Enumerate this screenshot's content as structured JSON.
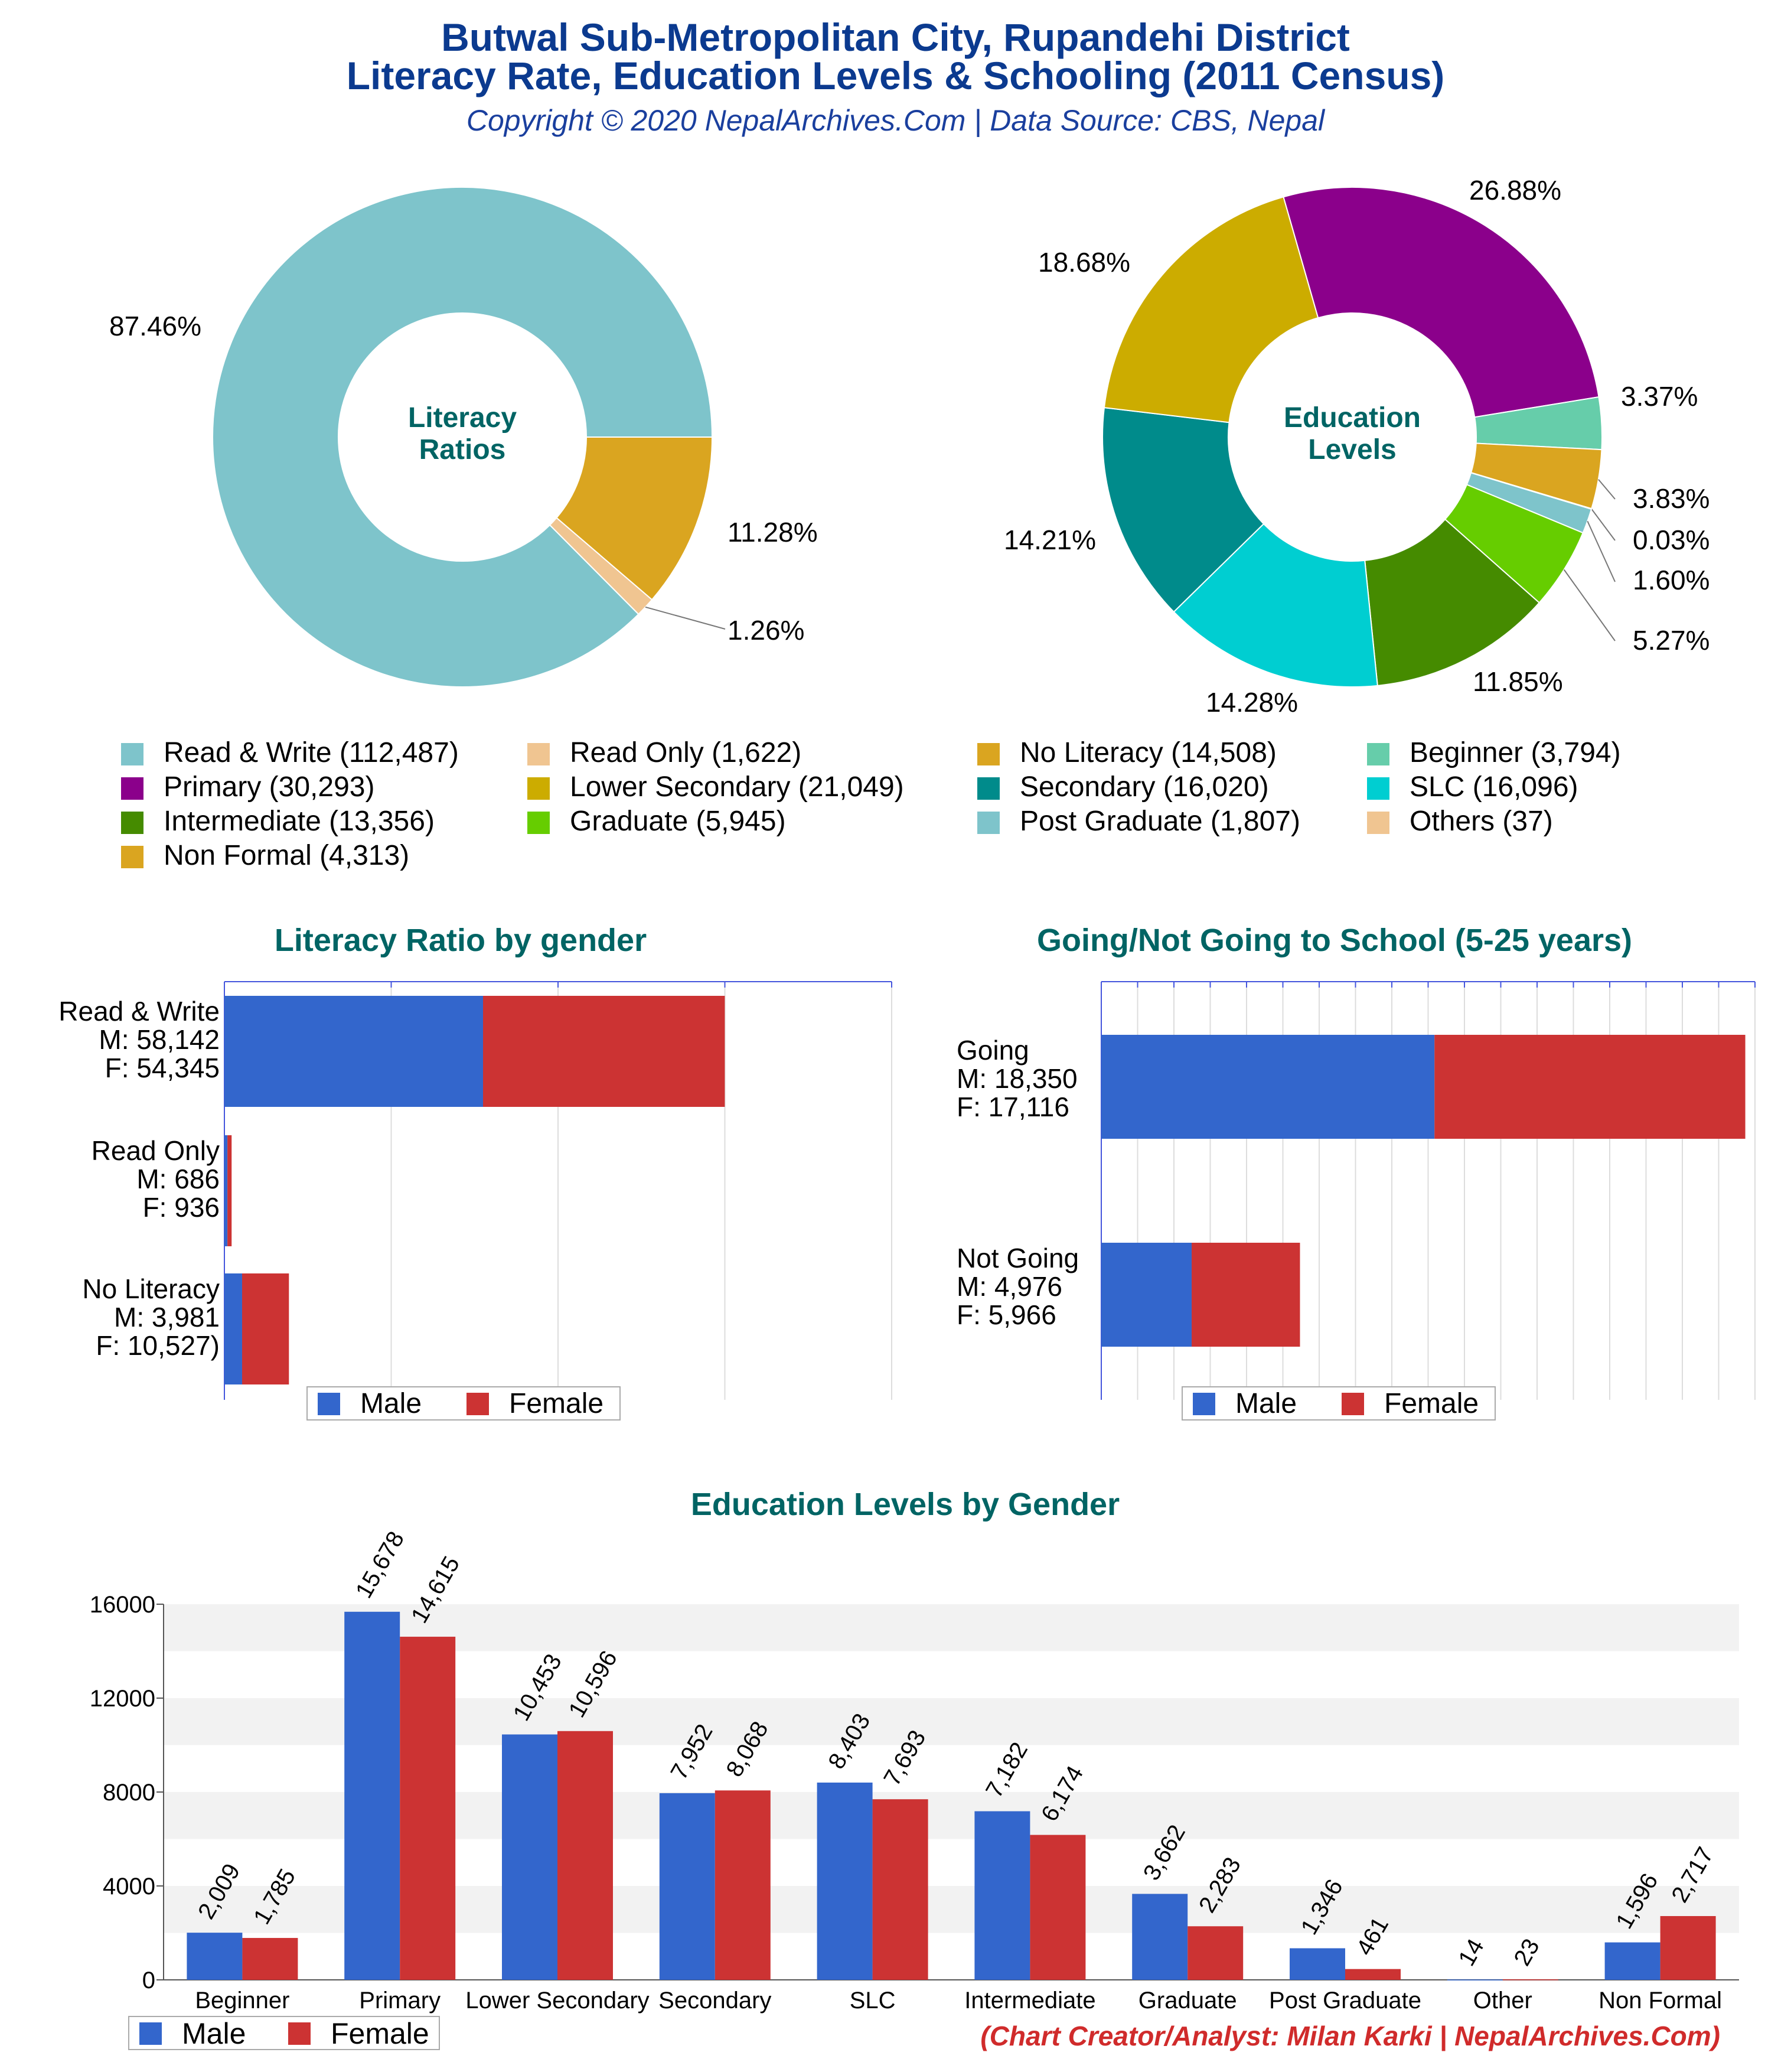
{
  "header": {
    "title_line1": "Butwal Sub-Metropolitan City, Rupandehi District",
    "title_line2": "Literacy Rate, Education Levels & Schooling (2011 Census)",
    "copyright": "Copyright © 2020 NepalArchives.Com | Data Source: CBS, Nepal"
  },
  "footer": {
    "credit": "(Chart Creator/Analyst: Milan Karki | NepalArchives.Com)"
  },
  "legend": {
    "items": [
      {
        "label": "Read & Write (112,487)",
        "color": "#7ec4cb"
      },
      {
        "label": "Read Only (1,622)",
        "color": "#f0c591"
      },
      {
        "label": "No Literacy (14,508)",
        "color": "#daa520"
      },
      {
        "label": "Beginner (3,794)",
        "color": "#66cdaa"
      },
      {
        "label": "Primary (30,293)",
        "color": "#8b008b"
      },
      {
        "label": "Lower Secondary (21,049)",
        "color": "#ccac00"
      },
      {
        "label": "Secondary (16,020)",
        "color": "#008b8b"
      },
      {
        "label": "SLC (16,096)",
        "color": "#00ced1"
      },
      {
        "label": "Intermediate (13,356)",
        "color": "#458b00"
      },
      {
        "label": "Graduate (5,945)",
        "color": "#66cd00"
      },
      {
        "label": "Post Graduate (1,807)",
        "color": "#7ec4cb"
      },
      {
        "label": "Others (37)",
        "color": "#f0c591"
      },
      {
        "label": "Non Formal (4,313)",
        "color": "#daa520"
      }
    ]
  },
  "gender_legend": {
    "male": "Male",
    "female": "Female",
    "male_color": "#3366cc",
    "female_color": "#cc3333"
  },
  "chart_data": [
    {
      "type": "pie",
      "center_label": "Literacy Ratios",
      "slices": [
        {
          "label": "Read & Write",
          "value": 112487,
          "percent": "87.46%",
          "color": "#7ec4cb"
        },
        {
          "label": "No Literacy",
          "value": 14508,
          "percent": "11.28%",
          "color": "#daa520"
        },
        {
          "label": "Read Only",
          "value": 1622,
          "percent": "1.26%",
          "color": "#f0c591"
        }
      ]
    },
    {
      "type": "pie",
      "center_label": "Education Levels",
      "slices": [
        {
          "label": "Primary",
          "value": 30293,
          "percent": "26.88%",
          "color": "#8b008b"
        },
        {
          "label": "Beginner",
          "value": 3794,
          "percent": "3.37%",
          "color": "#66cdaa"
        },
        {
          "label": "Non Formal",
          "value": 4313,
          "percent": "3.83%",
          "color": "#daa520"
        },
        {
          "label": "Others",
          "value": 37,
          "percent": "0.03%",
          "color": "#f0c591"
        },
        {
          "label": "Post Graduate",
          "value": 1807,
          "percent": "1.60%",
          "color": "#7ec4cb"
        },
        {
          "label": "Graduate",
          "value": 5945,
          "percent": "5.27%",
          "color": "#66cd00"
        },
        {
          "label": "Intermediate",
          "value": 13356,
          "percent": "11.85%",
          "color": "#458b00"
        },
        {
          "label": "SLC",
          "value": 16096,
          "percent": "14.28%",
          "color": "#00ced1"
        },
        {
          "label": "Secondary",
          "value": 16020,
          "percent": "14.21%",
          "color": "#008b8b"
        },
        {
          "label": "Lower Secondary",
          "value": 21049,
          "percent": "18.68%",
          "color": "#ccac00"
        }
      ]
    },
    {
      "type": "bar",
      "title": "Literacy Ratio by gender",
      "orientation": "horizontal",
      "stacked": true,
      "categories": [
        {
          "lines": [
            "Read & Write",
            "M: 58,142",
            "F: 54,345"
          ]
        },
        {
          "lines": [
            "Read Only",
            "M: 686",
            "F: 936"
          ]
        },
        {
          "lines": [
            "No Literacy",
            "M: 3,981",
            "F: 10,527)"
          ]
        }
      ],
      "series": [
        {
          "name": "Male",
          "values": [
            58142,
            686,
            3981
          ]
        },
        {
          "name": "Female",
          "values": [
            54345,
            936,
            10527
          ]
        }
      ],
      "xlim": [
        0,
        150000
      ],
      "legend": "bottom-center"
    },
    {
      "type": "bar",
      "title": "Going/Not Going to School (5-25 years)",
      "orientation": "horizontal",
      "stacked": true,
      "categories": [
        {
          "lines": [
            "Going",
            "M: 18,350",
            "F: 17,116"
          ]
        },
        {
          "lines": [
            "Not Going",
            "M: 4,976",
            "F: 5,966"
          ]
        }
      ],
      "series": [
        {
          "name": "Male",
          "values": [
            18350,
            4976
          ]
        },
        {
          "name": "Female",
          "values": [
            17116,
            5966
          ]
        }
      ],
      "xlim": [
        0,
        36000
      ],
      "legend": "bottom-center"
    },
    {
      "type": "bar",
      "title": "Education Levels by Gender",
      "categories": [
        "Beginner",
        "Primary",
        "Lower Secondary",
        "Secondary",
        "SLC",
        "Intermediate",
        "Graduate",
        "Post Graduate",
        "Other",
        "Non Formal"
      ],
      "series": [
        {
          "name": "Male",
          "values": [
            2009,
            15678,
            10453,
            7952,
            8403,
            7182,
            3662,
            1346,
            14,
            1596
          ],
          "labels": [
            "2,009",
            "15,678",
            "10,453",
            "7,952",
            "8,403",
            "7,182",
            "3,662",
            "1,346",
            "14",
            "1,596"
          ]
        },
        {
          "name": "Female",
          "values": [
            1785,
            14615,
            10596,
            8068,
            7693,
            6174,
            2283,
            461,
            23,
            2717
          ],
          "labels": [
            "1,785",
            "14,615",
            "10,596",
            "8,068",
            "7,693",
            "6,174",
            "2,283",
            "461",
            "23",
            "2,717"
          ]
        }
      ],
      "ylim": [
        0,
        16000
      ],
      "yticks": [
        "0",
        "4000",
        "8000",
        "12000",
        "16000"
      ],
      "ytick_values": [
        0,
        4000,
        8000,
        12000,
        16000
      ],
      "legend": "bottom-left"
    }
  ]
}
